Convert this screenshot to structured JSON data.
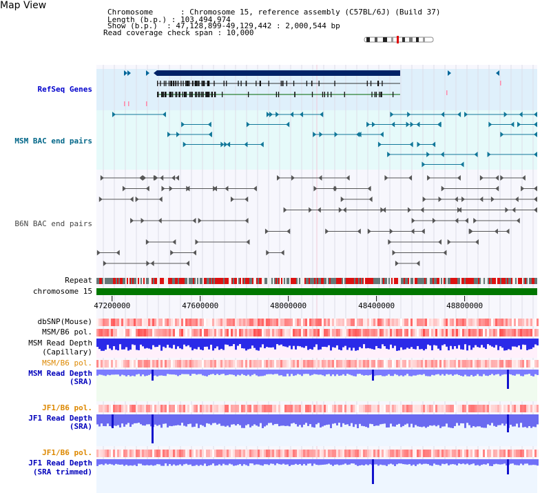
{
  "header": {
    "title": "Map View",
    "info_lines": [
      "Chromosome      : Chromosome 15, reference assembly (C57BL/6J) (Build 37)",
      "Length (b.p.) : 103,494,974",
      "Show (b.p.)  : 47,128,899-49,129,442 : 2,000,544 bp",
      "Read coverage check span : 10,000"
    ]
  },
  "tracks": {
    "refseq": {
      "label": "RefSeq Genes",
      "color": "#0000cc"
    },
    "msm_bac": {
      "label": "MSM BAC end pairs",
      "color": "#006688"
    },
    "b6n_bac": {
      "label": "B6N BAC end pairs",
      "color": "#444444"
    },
    "repeat": {
      "label": "Repeat"
    },
    "chrom": {
      "label": "chromosome 15"
    },
    "dbsnp": {
      "label": "dbSNP(Mouse)"
    },
    "msm_b6_pol": {
      "label": "MSM/B6 pol."
    },
    "msm_depth": {
      "label": "MSM Read Depth",
      "sub": "(Capillary)"
    },
    "msm_b6_pol2": {
      "label": "MSM/B6 pol.",
      "color": "#dd8800"
    },
    "msm_depth_sra": {
      "label": "MSM Read Depth",
      "sub": "(SRA)",
      "color": "#0000bb"
    },
    "jf1_b6_pol": {
      "label": "JF1/B6 pol.",
      "color": "#dd8800"
    },
    "jf1_depth_sra": {
      "label": "JF1 Read Depth",
      "sub": "(SRA)",
      "color": "#0000bb"
    },
    "jf1_b6_pol2": {
      "label": "JF1/B6 pol.",
      "color": "#dd8800"
    },
    "jf1_depth_trim": {
      "label": "JF1 Read Depth",
      "sub": "(SRA trimmed)",
      "color": "#0000bb"
    }
  },
  "axis": {
    "ticks": [
      "47200000",
      "47600000",
      "48000000",
      "48400000",
      "48800000"
    ],
    "tick_values": [
      47200000,
      47600000,
      48000000,
      48400000,
      48800000
    ],
    "range": [
      47128899,
      49129442
    ]
  },
  "colors": {
    "refseq_bg": "#dff0fb",
    "msm_bg": "#e6fafa",
    "panel_bg": "#f6f6fd",
    "chrom_green": "#007700",
    "snp_red": "#ff6060",
    "depth_blue": "#3333ee",
    "depth_light": "#7777ff",
    "depth_bg_pink": "#fff0fb",
    "depth_bg_green": "#f0fbef",
    "depth_bg_blue": "#eef6ff"
  }
}
